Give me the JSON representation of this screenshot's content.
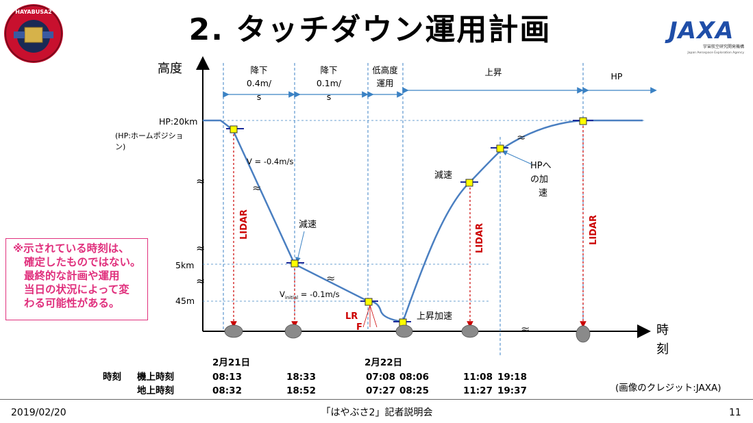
{
  "header": {
    "title": "2. タッチダウン運用計画",
    "badge_text": "HAYABUSA2",
    "logo_text": "JAXA",
    "logo_sub1": "宇宙航空研究開発機構",
    "logo_sub2": "Japan Aerospace Exploration Agency"
  },
  "chart_data": {
    "type": "line",
    "title": "",
    "ylabel": "高度",
    "xlabel": "時刻",
    "y_ticks": [
      "HP:20km",
      "5km",
      "45m"
    ],
    "hp_note": "(HP:ホームポジション)",
    "phases": [
      "降下 0.4m/s",
      "降下 0.1m/s",
      "低高度運用",
      "上昇",
      "HP"
    ],
    "phase_lines": {
      "p1a": "降下",
      "p1b": "0.4m/",
      "p1c": "s",
      "p2a": "降下",
      "p2b": "0.1m/",
      "p2c": "s",
      "p3a": "低高度",
      "p3b": "運用",
      "p4": "上昇",
      "p5": "HP"
    },
    "annotations": {
      "v1": "V = -0.4m/s",
      "v2_pre": "V",
      "v2_sub": "initial",
      "v2_post": " = -0.1m/s",
      "decel1": "減速",
      "decel2": "減速",
      "accel_up": "上昇加速",
      "hp_acc1": "HPへ",
      "hp_acc2": "の加",
      "hp_acc3": "速",
      "lidar": "LIDAR",
      "lrf1": "LR",
      "lrf2": "F"
    },
    "dates": [
      "2月21日",
      "2月22日"
    ],
    "time_rows": {
      "label": "時刻",
      "onboard": {
        "label": "機上時刻",
        "times": [
          "08:13",
          "18:33",
          "07:08",
          "08:06",
          "11:08",
          "19:18"
        ]
      },
      "ground": {
        "label": "地上時刻",
        "times": [
          "08:32",
          "18:52",
          "07:27",
          "08:25",
          "11:27",
          "19:37"
        ]
      }
    },
    "series": [
      {
        "values": [
          {
            "x": "start",
            "y": "HP:20km"
          },
          {
            "x": "08:13",
            "y": "HP:20km"
          },
          {
            "x": "18:33",
            "y": "5km"
          },
          {
            "x": "07:08",
            "y": "45m"
          },
          {
            "x": "08:06",
            "y": "0"
          },
          {
            "x": "11:08",
            "y": "ascent"
          },
          {
            "x": "19:18",
            "y": "HP:20km"
          }
        ]
      }
    ],
    "colors": {
      "line": "#4a7fc1",
      "marker": "#ffff00",
      "lidar": "#cc0000",
      "phase_line": "#3b82c4"
    }
  },
  "note": {
    "lines": [
      "※示されている時刻は、",
      "確定したものではない。",
      "最終的な計画や運用",
      "当日の状況によって変",
      "わる可能性がある。"
    ]
  },
  "credit": "(画像のクレジット:JAXA)",
  "footer": {
    "date": "2019/02/20",
    "event": "「はやぶさ2」記者説明会",
    "page": "11"
  }
}
